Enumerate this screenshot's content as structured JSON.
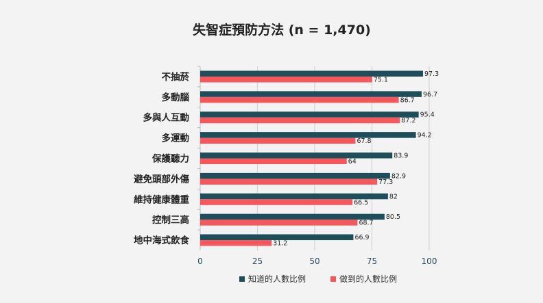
{
  "chart_data": {
    "type": "bar",
    "orientation": "horizontal",
    "title": "失智症預防方法 (n = 1,470)",
    "categories": [
      "不抽菸",
      "多動腦",
      "多與人互動",
      "多運動",
      "保護聽力",
      "避免頭部外傷",
      "維持健康體重",
      "控制三高",
      "地中海式飲食"
    ],
    "series": [
      {
        "name": "知道的人數比例",
        "color": "#1f4e5b",
        "values": [
          97.3,
          96.7,
          95.4,
          94.2,
          83.9,
          82.9,
          82,
          80.5,
          66.9
        ]
      },
      {
        "name": "做到的人數比例",
        "color": "#f4585c",
        "values": [
          75.1,
          86.7,
          87.2,
          67.8,
          64,
          77.3,
          66.5,
          68.7,
          31.2
        ]
      }
    ],
    "xlim": [
      0,
      100
    ],
    "xticks": [
      0,
      25,
      50,
      75,
      100
    ],
    "grid": true,
    "legend": "bottom",
    "xlabel": "",
    "ylabel": ""
  }
}
